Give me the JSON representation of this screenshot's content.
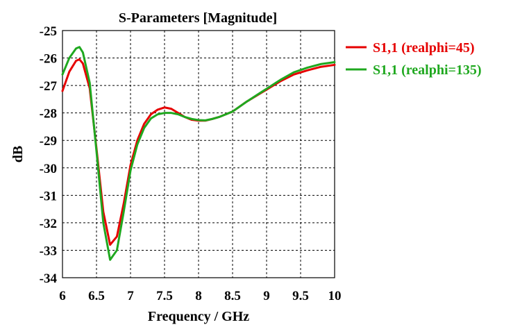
{
  "chart_data": {
    "type": "line",
    "title": "S-Parameters [Magnitude]",
    "xlabel": "Frequency / GHz",
    "ylabel": "dB",
    "xlim": [
      6,
      10
    ],
    "ylim": [
      -34,
      -25
    ],
    "xticks": [
      6,
      6.5,
      7,
      7.5,
      8,
      8.5,
      9,
      9.5,
      10
    ],
    "xtick_labels": [
      "6",
      "6.5",
      "7",
      "7.5",
      "8",
      "8.5",
      "9",
      "9.5",
      "10"
    ],
    "yticks": [
      -25,
      -26,
      -27,
      -28,
      -29,
      -30,
      -31,
      -32,
      -33,
      -34
    ],
    "ytick_labels": [
      "-25",
      "-26",
      "-27",
      "-28",
      "-29",
      "-30",
      "-31",
      "-32",
      "-33",
      "-34"
    ],
    "grid": true,
    "legend_position": "right-top-outside",
    "series": [
      {
        "name": "S1,1 (realphi=45)",
        "color": "#e60000",
        "x": [
          6.0,
          6.1,
          6.2,
          6.25,
          6.3,
          6.4,
          6.5,
          6.6,
          6.7,
          6.8,
          6.9,
          7.0,
          7.1,
          7.2,
          7.3,
          7.4,
          7.5,
          7.6,
          7.7,
          7.8,
          7.9,
          8.0,
          8.1,
          8.2,
          8.3,
          8.5,
          8.7,
          8.9,
          9.0,
          9.2,
          9.4,
          9.6,
          9.8,
          10.0
        ],
        "y": [
          -27.2,
          -26.5,
          -26.1,
          -26.05,
          -26.2,
          -27.1,
          -29.3,
          -31.6,
          -32.8,
          -32.5,
          -31.3,
          -29.9,
          -29.0,
          -28.4,
          -28.05,
          -27.88,
          -27.8,
          -27.85,
          -28.0,
          -28.15,
          -28.25,
          -28.28,
          -28.28,
          -28.22,
          -28.15,
          -27.95,
          -27.6,
          -27.3,
          -27.15,
          -26.85,
          -26.6,
          -26.45,
          -26.32,
          -26.25
        ]
      },
      {
        "name": "S1,1 (realphi=135)",
        "color": "#1fa81f",
        "x": [
          6.0,
          6.1,
          6.2,
          6.25,
          6.3,
          6.4,
          6.5,
          6.6,
          6.7,
          6.8,
          6.9,
          7.0,
          7.1,
          7.2,
          7.3,
          7.4,
          7.5,
          7.6,
          7.7,
          7.8,
          7.9,
          8.0,
          8.1,
          8.2,
          8.3,
          8.5,
          8.7,
          8.9,
          9.0,
          9.2,
          9.4,
          9.6,
          9.8,
          10.0
        ],
        "y": [
          -26.6,
          -26.0,
          -25.65,
          -25.6,
          -25.8,
          -26.9,
          -29.4,
          -32.0,
          -33.35,
          -33.0,
          -31.6,
          -30.1,
          -29.15,
          -28.55,
          -28.2,
          -28.05,
          -28.0,
          -28.0,
          -28.05,
          -28.15,
          -28.22,
          -28.26,
          -28.27,
          -28.22,
          -28.15,
          -27.95,
          -27.6,
          -27.28,
          -27.12,
          -26.8,
          -26.52,
          -26.35,
          -26.22,
          -26.15
        ]
      }
    ]
  }
}
